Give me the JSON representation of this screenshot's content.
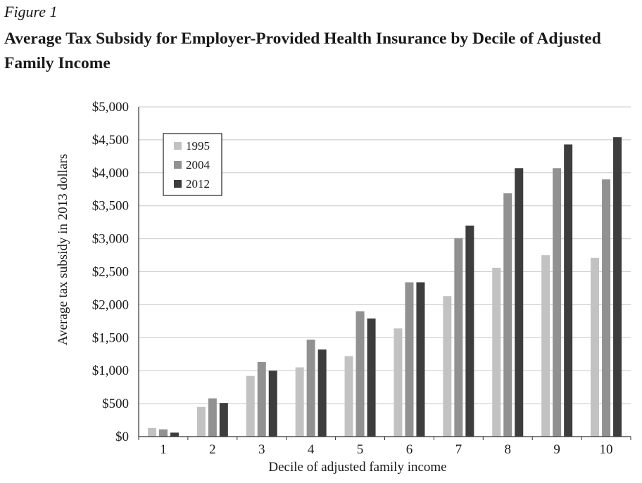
{
  "figure_label": "Figure 1",
  "title": "Average Tax Subsidy for Employer-Provided Health Insurance by Decile of Adjusted Family Income",
  "colors": {
    "1995": "#c2c2c2",
    "2004": "#919191",
    "2012": "#3d3d3d",
    "grid": "#c8c8c8",
    "axis": "#333333"
  },
  "chart_data": {
    "type": "bar",
    "title": "Average Tax Subsidy for Employer-Provided Health Insurance by Decile of Adjusted Family Income",
    "xlabel": "Decile of adjusted family income",
    "ylabel": "Average tax subsidy in 2013 dollars",
    "categories": [
      "1",
      "2",
      "3",
      "4",
      "5",
      "6",
      "7",
      "8",
      "9",
      "10"
    ],
    "series": [
      {
        "name": "1995",
        "values": [
          130,
          450,
          920,
          1050,
          1220,
          1640,
          2130,
          2560,
          2750,
          2710
        ]
      },
      {
        "name": "2004",
        "values": [
          110,
          580,
          1130,
          1470,
          1900,
          2340,
          3010,
          3690,
          4070,
          3900
        ]
      },
      {
        "name": "2012",
        "values": [
          60,
          510,
          1000,
          1320,
          1790,
          2340,
          3200,
          4070,
          4430,
          4540
        ]
      }
    ],
    "ylim": [
      0,
      5000
    ],
    "yticks": [
      0,
      500,
      1000,
      1500,
      2000,
      2500,
      3000,
      3500,
      4000,
      4500,
      5000
    ],
    "ytick_labels": [
      "$0",
      "$500",
      "$1,000",
      "$1,500",
      "$2,000",
      "$2,500",
      "$3,000",
      "$3,500",
      "$4,000",
      "$4,500",
      "$5,000"
    ],
    "grid": true,
    "legend": {
      "position": "top-left",
      "entries": [
        "1995",
        "2004",
        "2012"
      ]
    }
  }
}
